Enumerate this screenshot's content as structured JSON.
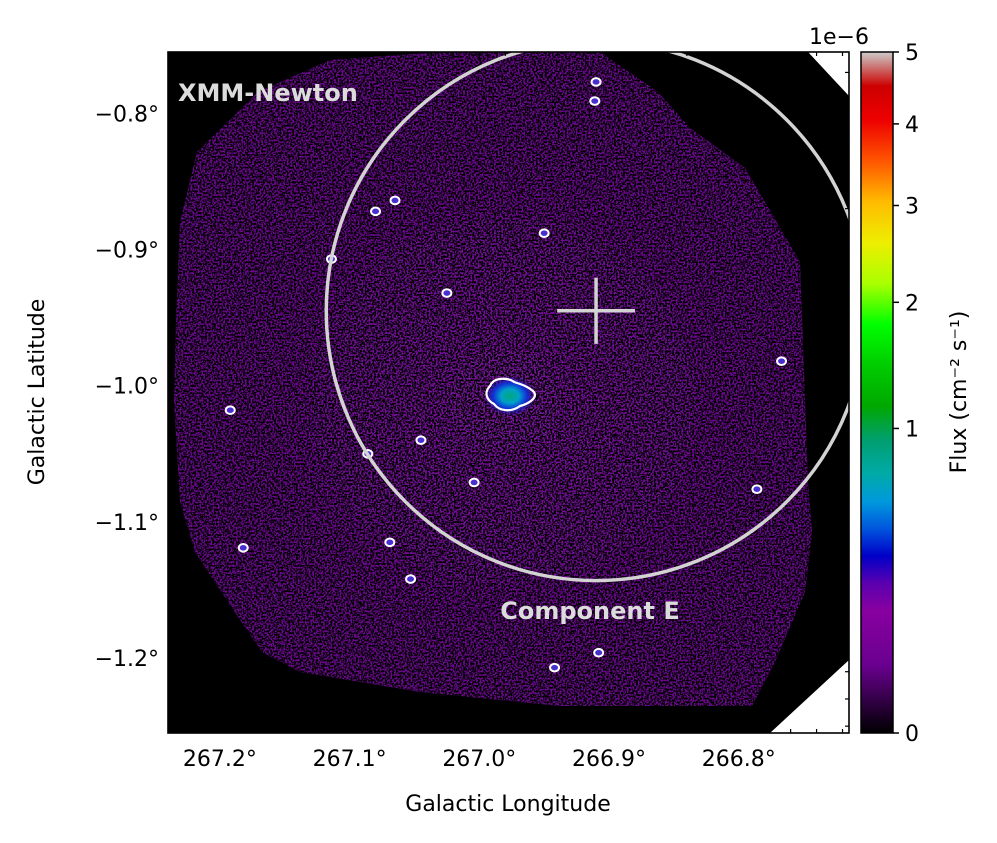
{
  "chart_data": {
    "type": "heatmap",
    "instrument_label": "XMM-Newton",
    "region_label": "Component E",
    "xlabel": "Galactic Longitude",
    "ylabel": "Galactic Latitude",
    "xlim": [
      267.24,
      266.715
    ],
    "ylim": [
      -1.255,
      -0.755
    ],
    "x_ticks": [
      {
        "value": 267.2,
        "label": "267.2°"
      },
      {
        "value": 267.1,
        "label": "267.1°"
      },
      {
        "value": 267.0,
        "label": "267.0°"
      },
      {
        "value": 266.9,
        "label": "266.9°"
      },
      {
        "value": 266.8,
        "label": "266.8°"
      }
    ],
    "y_ticks": [
      {
        "value": -0.8,
        "label": "−0.8°"
      },
      {
        "value": -0.9,
        "label": "−0.9°"
      },
      {
        "value": -1.0,
        "label": "−1.0°"
      },
      {
        "value": -1.1,
        "label": "−1.1°"
      },
      {
        "value": -1.2,
        "label": "−1.2°"
      }
    ],
    "colorbar": {
      "label": "Flux (cm⁻² s⁻¹)",
      "offset_text": "1e−6",
      "colormap": "nipy_spectral",
      "scale": "sqrt",
      "range": [
        0,
        5
      ],
      "ticks": [
        {
          "value": 0,
          "label": "0"
        },
        {
          "value": 1,
          "label": "1"
        },
        {
          "value": 2,
          "label": "2"
        },
        {
          "value": 3,
          "label": "3"
        },
        {
          "value": 4,
          "label": "4"
        },
        {
          "value": 5,
          "label": "5"
        }
      ]
    },
    "region_circle": {
      "center": [
        266.91,
        -0.945
      ],
      "radius_deg": 0.208,
      "color": "#d3d3d3"
    },
    "center_marker": {
      "l": 266.91,
      "b": -0.945,
      "half_size_deg": 0.03,
      "color": "#d3d3d3"
    },
    "bright_source": {
      "l": 266.97,
      "b": -1.005
    },
    "point_sources": [
      {
        "l": 266.91,
        "b": -0.777
      },
      {
        "l": 266.911,
        "b": -0.791
      },
      {
        "l": 267.065,
        "b": -0.864
      },
      {
        "l": 267.08,
        "b": -0.872
      },
      {
        "l": 266.95,
        "b": -0.888
      },
      {
        "l": 267.114,
        "b": -0.907
      },
      {
        "l": 267.025,
        "b": -0.932
      },
      {
        "l": 266.767,
        "b": -0.982
      },
      {
        "l": 267.192,
        "b": -1.018
      },
      {
        "l": 267.045,
        "b": -1.04
      },
      {
        "l": 267.086,
        "b": -1.05
      },
      {
        "l": 267.004,
        "b": -1.071
      },
      {
        "l": 266.786,
        "b": -1.076
      },
      {
        "l": 267.069,
        "b": -1.115
      },
      {
        "l": 267.182,
        "b": -1.119
      },
      {
        "l": 267.053,
        "b": -1.142
      },
      {
        "l": 266.908,
        "b": -1.196
      },
      {
        "l": 266.942,
        "b": -1.207
      }
    ]
  }
}
